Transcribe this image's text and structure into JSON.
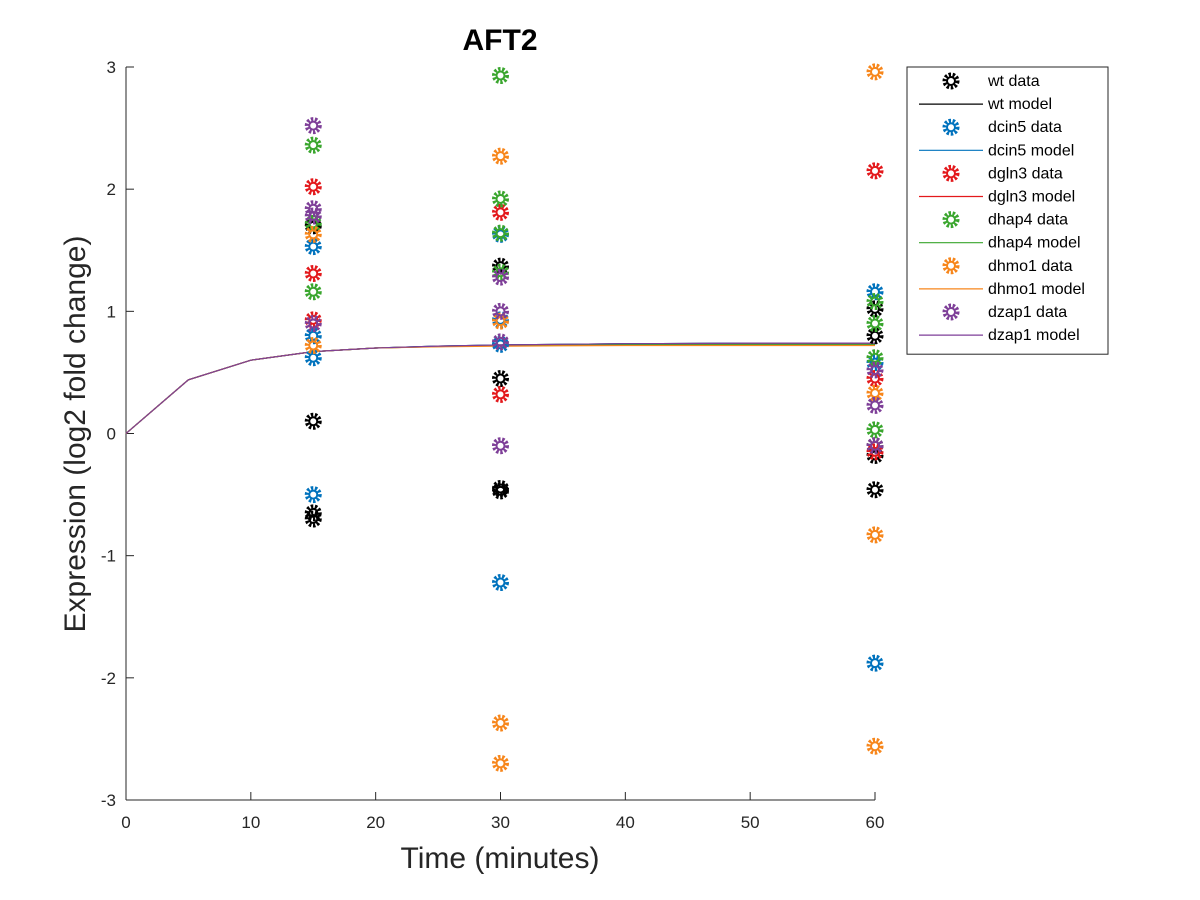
{
  "chart_data": {
    "type": "scatter",
    "title": "AFT2",
    "xlabel": "Time (minutes)",
    "ylabel": "Expression (log2 fold change)",
    "xlim": [
      0,
      60
    ],
    "ylim": [
      -3,
      3
    ],
    "xticks": [
      0,
      10,
      20,
      30,
      40,
      50,
      60
    ],
    "yticks": [
      -3,
      -2,
      -1,
      0,
      1,
      2,
      3
    ],
    "grid": false,
    "legend_position": "outside-top-right",
    "model_x": [
      0,
      5,
      10,
      15,
      20,
      25,
      30,
      35,
      40,
      45,
      50,
      55,
      60
    ],
    "series": [
      {
        "name": "wt",
        "data_label": "wt data",
        "model_label": "wt model",
        "color": "#000000",
        "data": [
          {
            "x": 15,
            "y": -0.65
          },
          {
            "x": 15,
            "y": -0.7
          },
          {
            "x": 15,
            "y": 0.1
          },
          {
            "x": 15,
            "y": 1.7
          },
          {
            "x": 30,
            "y": -0.45
          },
          {
            "x": 30,
            "y": -0.47
          },
          {
            "x": 30,
            "y": 0.45
          },
          {
            "x": 30,
            "y": 1.37
          },
          {
            "x": 60,
            "y": -0.46
          },
          {
            "x": 60,
            "y": -0.18
          },
          {
            "x": 60,
            "y": -0.1
          },
          {
            "x": 60,
            "y": 0.8
          },
          {
            "x": 60,
            "y": 1.02
          }
        ],
        "model": [
          0,
          0.44,
          0.6,
          0.67,
          0.7,
          0.715,
          0.725,
          0.73,
          0.735,
          0.737,
          0.74,
          0.74,
          0.74
        ]
      },
      {
        "name": "dcin5",
        "data_label": "dcin5 data",
        "model_label": "dcin5 model",
        "color": "#0072BD",
        "data": [
          {
            "x": 15,
            "y": -0.5
          },
          {
            "x": 15,
            "y": 0.62
          },
          {
            "x": 15,
            "y": 0.8
          },
          {
            "x": 15,
            "y": 1.53
          },
          {
            "x": 30,
            "y": -1.22
          },
          {
            "x": 30,
            "y": 0.73
          },
          {
            "x": 30,
            "y": 0.93
          },
          {
            "x": 30,
            "y": 1.63
          },
          {
            "x": 60,
            "y": -1.88
          },
          {
            "x": 60,
            "y": 0.58
          },
          {
            "x": 60,
            "y": 1.16
          }
        ],
        "model": [
          0,
          0.44,
          0.6,
          0.67,
          0.7,
          0.715,
          0.725,
          0.73,
          0.735,
          0.737,
          0.74,
          0.74,
          0.74
        ]
      },
      {
        "name": "dgln3",
        "data_label": "dgln3 data",
        "model_label": "dgln3 model",
        "color": "#E3191C",
        "data": [
          {
            "x": 15,
            "y": 0.93
          },
          {
            "x": 15,
            "y": 1.31
          },
          {
            "x": 15,
            "y": 2.02
          },
          {
            "x": 30,
            "y": 0.32
          },
          {
            "x": 30,
            "y": 1.81
          },
          {
            "x": 60,
            "y": -0.15
          },
          {
            "x": 60,
            "y": 0.45
          },
          {
            "x": 60,
            "y": 2.15
          }
        ],
        "model": [
          0,
          0.44,
          0.6,
          0.67,
          0.7,
          0.712,
          0.72,
          0.725,
          0.728,
          0.73,
          0.73,
          0.73,
          0.73
        ]
      },
      {
        "name": "dhap4",
        "data_label": "dhap4 data",
        "model_label": "dhap4 model",
        "color": "#3AA62E",
        "data": [
          {
            "x": 15,
            "y": 1.16
          },
          {
            "x": 15,
            "y": 1.72
          },
          {
            "x": 15,
            "y": 2.36
          },
          {
            "x": 30,
            "y": 1.32
          },
          {
            "x": 30,
            "y": 1.64
          },
          {
            "x": 30,
            "y": 1.92
          },
          {
            "x": 30,
            "y": 2.93
          },
          {
            "x": 60,
            "y": 0.03
          },
          {
            "x": 60,
            "y": 0.62
          },
          {
            "x": 60,
            "y": 0.9
          },
          {
            "x": 60,
            "y": 1.08
          }
        ],
        "model": [
          0,
          0.44,
          0.6,
          0.67,
          0.7,
          0.712,
          0.72,
          0.725,
          0.728,
          0.73,
          0.73,
          0.73,
          0.73
        ]
      },
      {
        "name": "dhmo1",
        "data_label": "dhmo1 data",
        "model_label": "dhmo1 model",
        "color": "#F7861B",
        "data": [
          {
            "x": 15,
            "y": 0.72
          },
          {
            "x": 15,
            "y": 1.63
          },
          {
            "x": 30,
            "y": -2.7
          },
          {
            "x": 30,
            "y": -2.37
          },
          {
            "x": 30,
            "y": 0.92
          },
          {
            "x": 30,
            "y": 2.27
          },
          {
            "x": 60,
            "y": -2.56
          },
          {
            "x": 60,
            "y": -0.83
          },
          {
            "x": 60,
            "y": 0.33
          },
          {
            "x": 60,
            "y": 2.96
          }
        ],
        "model": [
          0,
          0.44,
          0.6,
          0.67,
          0.7,
          0.71,
          0.715,
          0.718,
          0.72,
          0.72,
          0.72,
          0.72,
          0.72
        ]
      },
      {
        "name": "dzap1",
        "data_label": "dzap1 data",
        "model_label": "dzap1 model",
        "color": "#7E3F98",
        "data": [
          {
            "x": 15,
            "y": 0.9
          },
          {
            "x": 15,
            "y": 1.78
          },
          {
            "x": 15,
            "y": 1.84
          },
          {
            "x": 15,
            "y": 2.52
          },
          {
            "x": 30,
            "y": -0.1
          },
          {
            "x": 30,
            "y": 0.75
          },
          {
            "x": 30,
            "y": 1.0
          },
          {
            "x": 30,
            "y": 1.28
          },
          {
            "x": 60,
            "y": -0.1
          },
          {
            "x": 60,
            "y": 0.23
          },
          {
            "x": 60,
            "y": 0.52
          }
        ],
        "model": [
          0,
          0.44,
          0.6,
          0.67,
          0.7,
          0.715,
          0.725,
          0.73,
          0.735,
          0.737,
          0.74,
          0.74,
          0.74
        ]
      }
    ]
  }
}
